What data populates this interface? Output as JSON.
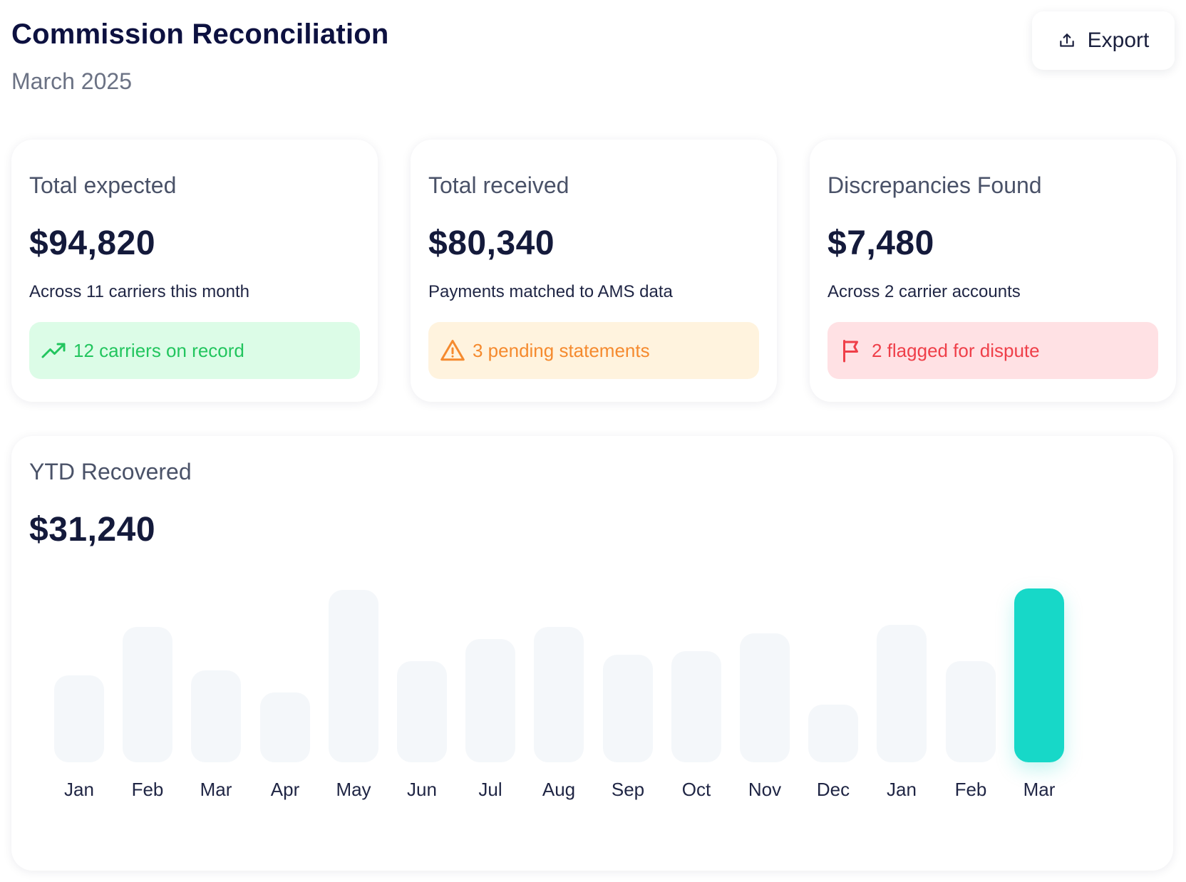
{
  "header": {
    "title": "Commission Reconciliation",
    "subtitle": "March 2025",
    "export_label": "Export"
  },
  "kpis": [
    {
      "label": "Total expected",
      "value": "$94,820",
      "description": "Across 11 carriers this month",
      "badge": "12 carriers on record",
      "badge_icon": "trending-up-icon",
      "badge_color": "#22c55e"
    },
    {
      "label": "Total received",
      "value": "$80,340",
      "description": "Payments matched to AMS data",
      "badge": "3 pending statements",
      "badge_icon": "warning-icon",
      "badge_color": "#f58a2e"
    },
    {
      "label": "Discrepancies Found",
      "value": "$7,480",
      "description": "Across 2 carrier accounts",
      "badge": "2 flagged for dispute",
      "badge_icon": "flag-icon",
      "badge_color": "#ef3f49"
    }
  ],
  "ytd": {
    "label": "YTD Recovered",
    "value": "$31,240"
  },
  "chart_data": {
    "type": "bar",
    "categories": [
      "Jan",
      "Feb",
      "Mar",
      "Apr",
      "May",
      "Jun",
      "Jul",
      "Aug",
      "Sep",
      "Oct",
      "Nov",
      "Dec",
      "Jan",
      "Feb",
      "Mar"
    ],
    "values": [
      0.5,
      0.78,
      0.53,
      0.4,
      0.99,
      0.58,
      0.71,
      0.78,
      0.62,
      0.64,
      0.74,
      0.33,
      0.79,
      0.58,
      1.0
    ],
    "highlight_index": 14,
    "highlight_color": "#17d8c8",
    "bar_color": "#f4f7fa",
    "ylim": [
      0,
      1
    ],
    "grid": false
  }
}
